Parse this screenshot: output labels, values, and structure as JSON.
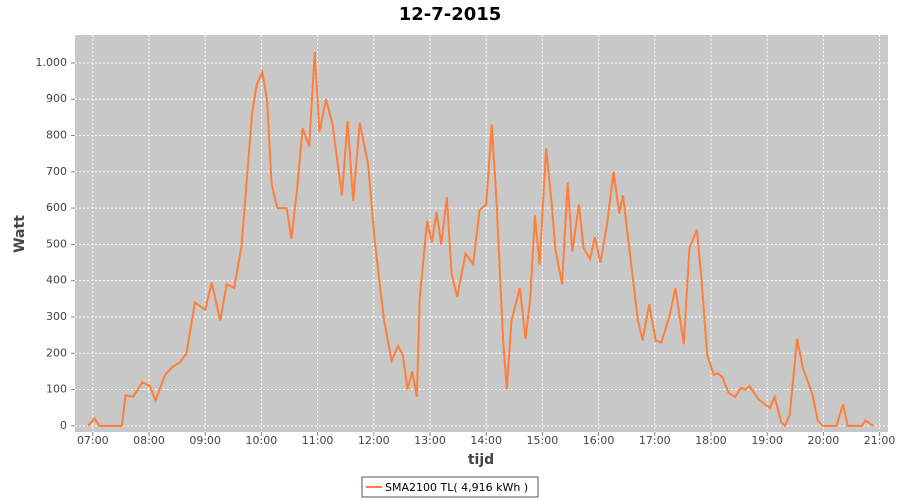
{
  "chart_data": {
    "type": "line",
    "title": "12-7-2015",
    "x_label": "tijd",
    "y_label": "Watt",
    "x": [
      "06:55",
      "07:02",
      "07:07",
      "07:27",
      "07:31",
      "07:35",
      "07:43",
      "07:53",
      "08:01",
      "08:07",
      "08:17",
      "08:24",
      "08:33",
      "08:40",
      "08:49",
      "09:00",
      "09:07",
      "09:16",
      "09:23",
      "09:31",
      "09:39",
      "09:50",
      "09:55",
      "10:01",
      "10:06",
      "10:11",
      "10:17",
      "10:27",
      "10:32",
      "10:38",
      "10:44",
      "10:51",
      "10:57",
      "11:02",
      "11:09",
      "11:16",
      "11:26",
      "11:32",
      "11:38",
      "11:45",
      "11:54",
      "12:01",
      "12:11",
      "12:19",
      "12:26",
      "12:31",
      "12:36",
      "12:41",
      "12:46",
      "12:49",
      "12:57",
      "13:02",
      "13:07",
      "13:12",
      "13:18",
      "13:23",
      "13:29",
      "13:38",
      "13:46",
      "13:53",
      "14:00",
      "14:06",
      "14:11",
      "14:18",
      "14:22",
      "14:27",
      "14:36",
      "14:42",
      "14:47",
      "14:52",
      "14:57",
      "15:04",
      "15:10",
      "15:14",
      "15:21",
      "15:27",
      "15:32",
      "15:39",
      "15:44",
      "15:51",
      "15:56",
      "16:02",
      "16:09",
      "16:16",
      "16:22",
      "16:26",
      "16:33",
      "16:42",
      "16:47",
      "16:54",
      "17:01",
      "17:07",
      "17:16",
      "17:22",
      "17:31",
      "17:37",
      "17:45",
      "17:50",
      "17:56",
      "18:03",
      "18:07",
      "18:12",
      "18:19",
      "18:26",
      "18:32",
      "18:37",
      "18:41",
      "18:50",
      "18:57",
      "19:03",
      "19:08",
      "19:15",
      "19:19",
      "19:24",
      "19:32",
      "19:38",
      "19:48",
      "19:54",
      "19:59",
      "20:14",
      "20:21",
      "20:26",
      "20:41",
      "20:45",
      "20:53"
    ],
    "series": [
      {
        "name": "SMA2100 TL( 4,916 kWh )",
        "color": "#ff7f3a",
        "values": [
          0,
          20,
          0,
          0,
          0,
          85,
          80,
          120,
          110,
          70,
          140,
          160,
          175,
          200,
          340,
          320,
          395,
          290,
          390,
          380,
          500,
          860,
          940,
          975,
          900,
          665,
          600,
          600,
          515,
          650,
          820,
          770,
          1030,
          810,
          900,
          830,
          635,
          840,
          620,
          835,
          720,
          510,
          290,
          180,
          220,
          195,
          100,
          150,
          80,
          350,
          565,
          505,
          590,
          500,
          630,
          420,
          355,
          475,
          445,
          595,
          610,
          830,
          620,
          240,
          100,
          290,
          380,
          240,
          350,
          580,
          445,
          765,
          610,
          485,
          390,
          670,
          480,
          610,
          490,
          460,
          520,
          450,
          555,
          700,
          585,
          635,
          485,
          290,
          235,
          335,
          235,
          230,
          305,
          380,
          225,
          490,
          540,
          400,
          195,
          140,
          145,
          135,
          90,
          80,
          105,
          100,
          110,
          75,
          60,
          50,
          80,
          10,
          0,
          30,
          240,
          160,
          90,
          15,
          0,
          0,
          60,
          0,
          0,
          15,
          0
        ]
      }
    ],
    "xlim": [
      "06:41",
      "21:09"
    ],
    "xticks": [
      "07:00",
      "08:00",
      "09:00",
      "10:00",
      "11:00",
      "12:00",
      "13:00",
      "14:00",
      "15:00",
      "16:00",
      "17:00",
      "18:00",
      "19:00",
      "20:00",
      "21:00"
    ],
    "ylim": [
      -17,
      1077
    ],
    "yticks": [
      0,
      100,
      200,
      300,
      400,
      500,
      600,
      700,
      800,
      900,
      {
        "value": 1000,
        "label": "1.000"
      }
    ],
    "grid": true,
    "legend": "bottom"
  }
}
